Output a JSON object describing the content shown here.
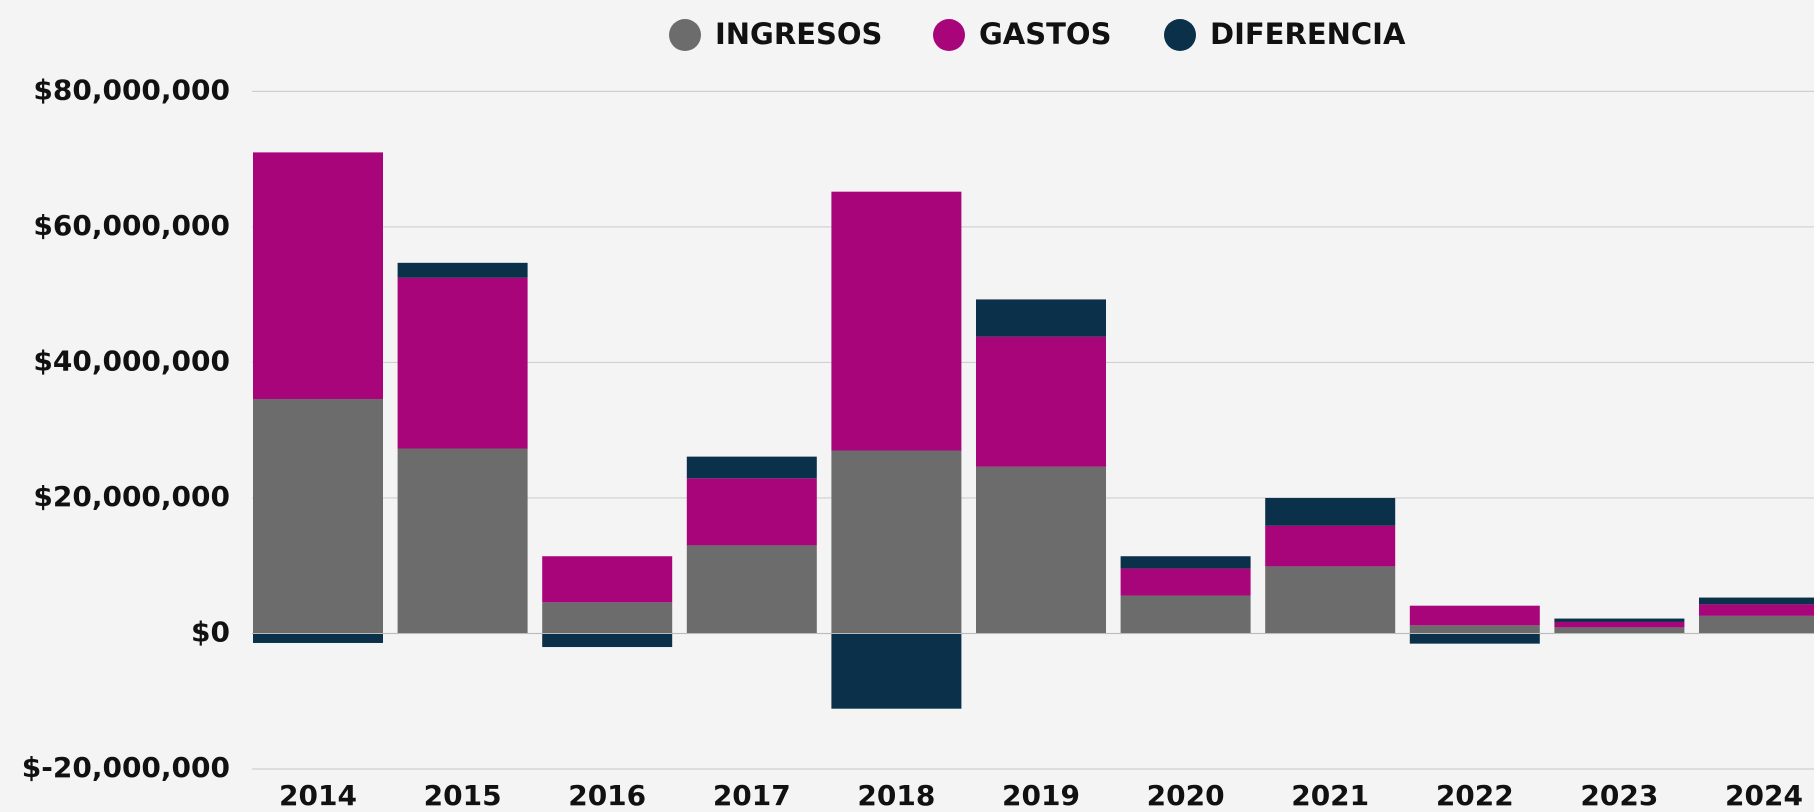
{
  "chart_data": {
    "type": "stacked_bar",
    "categories": [
      "2014",
      "2015",
      "2016",
      "2017",
      "2018",
      "2019",
      "2020",
      "2021",
      "2022",
      "2023",
      "2024"
    ],
    "series": [
      {
        "name": "INGRESOS",
        "color": "#6d6c6c",
        "values": [
          34.6,
          27.3,
          4.6,
          13.0,
          27.0,
          24.6,
          5.6,
          9.9,
          1.2,
          0.9,
          2.6
        ]
      },
      {
        "name": "GASTOS",
        "color": "#a8057b",
        "values": [
          36.4,
          25.2,
          6.8,
          9.9,
          38.2,
          19.2,
          4.0,
          6.0,
          2.9,
          0.8,
          1.7
        ]
      },
      {
        "name": "DIFERENCIA",
        "color": "#0a3149",
        "values": [
          -1.4,
          2.2,
          -2.0,
          3.2,
          -11.1,
          5.5,
          1.8,
          4.1,
          -1.5,
          0.5,
          1.0
        ]
      }
    ],
    "ylim": [
      -20,
      80
    ],
    "yticks": [
      {
        "value": -20,
        "label": "$-20,000,000"
      },
      {
        "value": 0,
        "label": "$0"
      },
      {
        "value": 20,
        "label": "$20,000,000"
      },
      {
        "value": 40,
        "label": "$40,000,000"
      },
      {
        "value": 60,
        "label": "$60,000,000"
      },
      {
        "value": 80,
        "label": "$80,000,000"
      }
    ],
    "grid": true,
    "legend": "top"
  }
}
